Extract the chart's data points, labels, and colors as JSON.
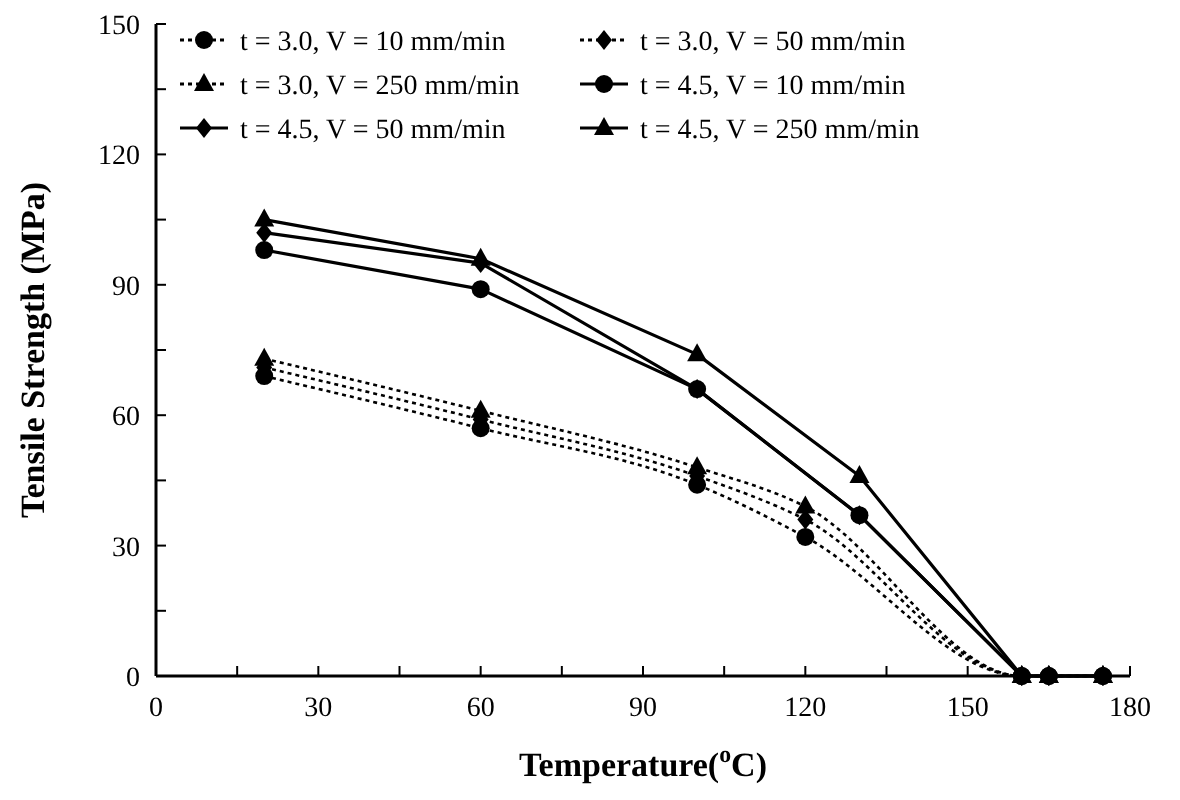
{
  "chart_data": {
    "type": "line",
    "xlabel": "Temperature($^{o}$C)",
    "ylabel": "Tensile Strength (MPa)",
    "xlim": [
      0,
      180
    ],
    "xticks": [
      0,
      {
        "value": 15,
        "label": null
      },
      30,
      {
        "value": 45,
        "label": null
      },
      60,
      {
        "value": 75,
        "label": null
      },
      90,
      {
        "value": 105,
        "label": null
      },
      120,
      {
        "value": 135,
        "label": null
      },
      150,
      {
        "value": 165,
        "label": null
      },
      180
    ],
    "ylim": [
      0,
      150
    ],
    "yticks": [
      0,
      {
        "value": 15,
        "label": null
      },
      30,
      {
        "value": 45,
        "label": null
      },
      60,
      {
        "value": 75,
        "label": null
      },
      90,
      {
        "value": 105,
        "label": null
      },
      120,
      {
        "value": 135,
        "label": null
      },
      150
    ],
    "legend": "top",
    "grid": false,
    "series": [
      {
        "name": "t = 3.0, V = 10 mm/min",
        "color": "#000000",
        "marker": "circle",
        "line_style": "dotted",
        "x": [
          20,
          60,
          100,
          120,
          160,
          165,
          175
        ],
        "values": [
          69,
          57,
          44,
          32,
          0,
          0,
          0
        ]
      },
      {
        "name": "t = 3.0, V = 50 mm/min",
        "color": "#000000",
        "marker": "diamond",
        "line_style": "dotted",
        "x": [
          20,
          60,
          100,
          120,
          160,
          165,
          175
        ],
        "values": [
          71,
          59,
          46,
          36,
          0,
          0,
          0
        ]
      },
      {
        "name": "t = 3.0, V = 250 mm/min",
        "color": "#000000",
        "marker": "triangle",
        "line_style": "dotted",
        "x": [
          20,
          60,
          100,
          120,
          160,
          165,
          175
        ],
        "values": [
          73,
          61,
          48,
          39,
          0,
          0,
          0
        ]
      },
      {
        "name": "t = 4.5, V = 10 mm/min",
        "color": "#000000",
        "marker": "circle",
        "line_style": "solid",
        "x": [
          20,
          60,
          100,
          130,
          160,
          165,
          175
        ],
        "values": [
          98,
          89,
          66,
          37,
          0,
          0,
          0
        ]
      },
      {
        "name": "t = 4.5, V = 50 mm/min",
        "color": "#000000",
        "marker": "diamond",
        "line_style": "solid",
        "x": [
          20,
          60,
          100,
          130,
          160,
          165,
          175
        ],
        "values": [
          102,
          95,
          66,
          37,
          0,
          0,
          0
        ]
      },
      {
        "name": "t = 4.5, V = 250 mm/min",
        "color": "#000000",
        "marker": "triangle",
        "line_style": "solid",
        "x": [
          20,
          60,
          100,
          130,
          160,
          165,
          175
        ],
        "values": [
          105,
          96,
          74,
          46,
          0,
          0,
          0
        ]
      }
    ]
  }
}
